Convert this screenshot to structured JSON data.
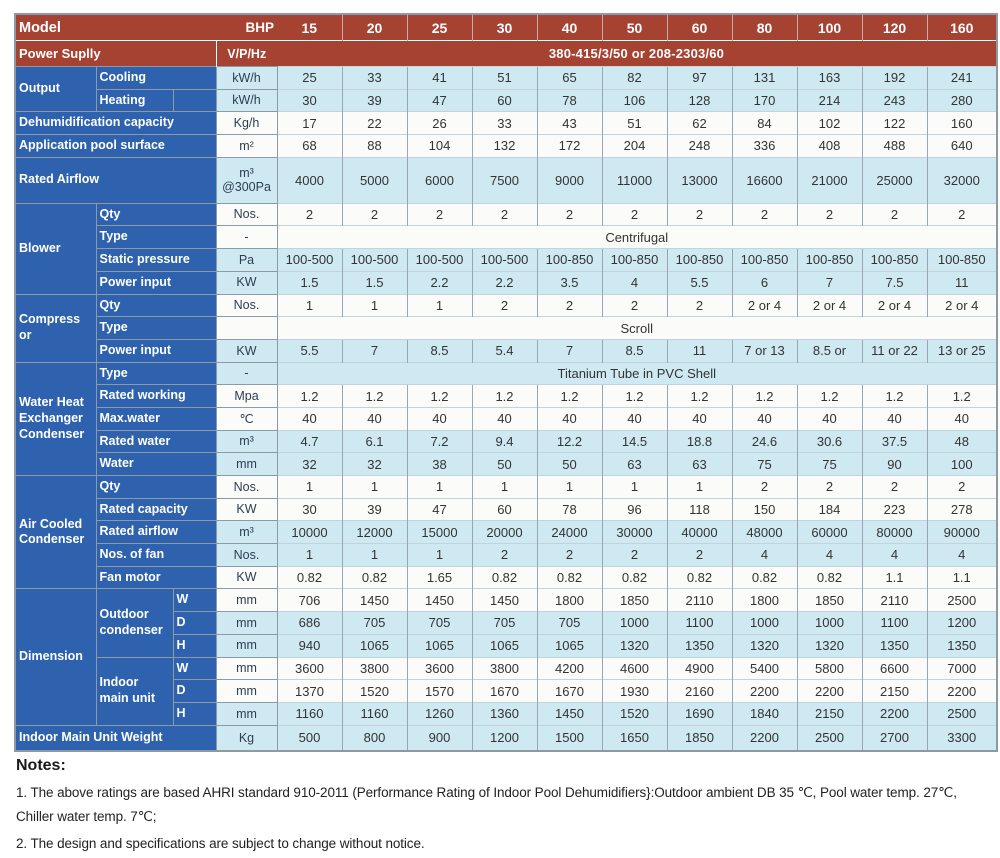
{
  "header": {
    "model_label": "Model",
    "bhp_label": "BHP",
    "models": [
      "15",
      "20",
      "25",
      "30",
      "40",
      "50",
      "60",
      "80",
      "100",
      "120",
      "160"
    ],
    "power_supply_label": "Power Suplly",
    "power_supply_unit": "V/P/Hz",
    "power_supply_value": "380-415/3/50 or 208-2303/60"
  },
  "table": {
    "rows": [
      {
        "section": "Output",
        "section_rowspan": 2,
        "label": "Cooling",
        "unit": "kW/h",
        "tint": true,
        "values": [
          25,
          33,
          41,
          51,
          65,
          82,
          97,
          131,
          163,
          192,
          241
        ]
      },
      {
        "label": "Heating",
        "narrow": true,
        "unit": "kW/h",
        "tint": true,
        "values": [
          30,
          39,
          47,
          60,
          78,
          106,
          128,
          170,
          214,
          243,
          280
        ]
      },
      {
        "wide": "Dehumidification capacity",
        "unit": "Kg/h",
        "tint": false,
        "values": [
          17,
          22,
          26,
          33,
          43,
          51,
          62,
          84,
          102,
          122,
          160
        ]
      },
      {
        "wide": "Application pool surface",
        "unit": "m²",
        "tint": false,
        "values": [
          68,
          88,
          104,
          132,
          172,
          204,
          248,
          336,
          408,
          488,
          640
        ]
      },
      {
        "wide": "Rated Airflow",
        "unit": "m³\n@300Pa",
        "tint": true,
        "tall": true,
        "values": [
          4000,
          5000,
          6000,
          7500,
          9000,
          11000,
          13000,
          16600,
          21000,
          25000,
          32000
        ]
      },
      {
        "section": "Blower",
        "section_rowspan": 4,
        "label": "Qty",
        "unit": "Nos.",
        "tint": false,
        "values": [
          2,
          2,
          2,
          2,
          2,
          2,
          2,
          2,
          2,
          2,
          2
        ]
      },
      {
        "label": "Type",
        "unit": "-",
        "tint": false,
        "span_value": "Centrifugal"
      },
      {
        "label": "Static pressure",
        "unit": "Pa",
        "tint": true,
        "values": [
          "100-500",
          "100-500",
          "100-500",
          "100-500",
          "100-850",
          "100-850",
          "100-850",
          "100-850",
          "100-850",
          "100-850",
          "100-850"
        ]
      },
      {
        "label": "Power input",
        "unit": "KW",
        "tint": true,
        "values": [
          1.5,
          1.5,
          2.2,
          2.2,
          3.5,
          4,
          5.5,
          6,
          7,
          7.5,
          11
        ]
      },
      {
        "section": "Compressor",
        "section_rowspan": 3,
        "wrap_section": true,
        "label": "Qty",
        "unit": "Nos.",
        "tint": false,
        "values": [
          1,
          1,
          1,
          2,
          2,
          2,
          2,
          "2 or 4",
          "2 or 4",
          "2 or 4",
          "2 or 4"
        ]
      },
      {
        "label": "Type",
        "unit": "",
        "tint": false,
        "span_value": "Scroll"
      },
      {
        "label": "Power input",
        "unit": "KW",
        "tint": true,
        "values": [
          5.5,
          7,
          8.5,
          5.4,
          7,
          8.5,
          11,
          "7 or 13",
          "8.5 or",
          "11 or 22",
          "13 or 25"
        ]
      },
      {
        "section": "Water Heat Exchanger Condenser",
        "section_rowspan": 5,
        "label": "Type",
        "unit": "-",
        "tint": true,
        "span_value": "Titanium Tube in PVC Shell"
      },
      {
        "label": "Rated working",
        "unit": "Mpa",
        "tint": false,
        "values": [
          1.2,
          1.2,
          1.2,
          1.2,
          1.2,
          1.2,
          1.2,
          1.2,
          1.2,
          1.2,
          1.2
        ]
      },
      {
        "label": "Max.water",
        "unit": "℃",
        "tint": false,
        "values": [
          40,
          40,
          40,
          40,
          40,
          40,
          40,
          40,
          40,
          40,
          40
        ]
      },
      {
        "label": "Rated water",
        "unit": "m³",
        "tint": true,
        "values": [
          4.7,
          6.1,
          7.2,
          9.4,
          12.2,
          14.5,
          18.8,
          24.6,
          30.6,
          37.5,
          48
        ]
      },
      {
        "label": "Water",
        "unit": "mm",
        "tint": true,
        "values": [
          32,
          32,
          38,
          50,
          50,
          63,
          63,
          75,
          75,
          90,
          100
        ]
      },
      {
        "section": "Air Cooled Condenser",
        "section_rowspan": 5,
        "label": "Qty",
        "unit": "Nos.",
        "tint": false,
        "values": [
          1,
          1,
          1,
          1,
          1,
          1,
          1,
          2,
          2,
          2,
          2
        ]
      },
      {
        "label": "Rated capacity",
        "unit": "KW",
        "tint": false,
        "values": [
          30,
          39,
          47,
          60,
          78,
          96,
          118,
          150,
          184,
          223,
          278
        ]
      },
      {
        "label": "Rated airflow",
        "unit": "m³",
        "tint": true,
        "values": [
          10000,
          12000,
          15000,
          20000,
          24000,
          30000,
          40000,
          48000,
          60000,
          80000,
          90000
        ]
      },
      {
        "label": "Nos. of fan",
        "unit": "Nos.",
        "tint": true,
        "values": [
          1,
          1,
          1,
          2,
          2,
          2,
          2,
          4,
          4,
          4,
          4
        ]
      },
      {
        "label": "Fan motor",
        "unit": "KW",
        "tint": false,
        "values": [
          0.82,
          0.82,
          1.65,
          0.82,
          0.82,
          0.82,
          0.82,
          0.82,
          0.82,
          1.1,
          1.1
        ]
      },
      {
        "section": "Dimension",
        "section_rowspan": 6,
        "group": "Outdoor condenser",
        "group_rowspan": 3,
        "dim": "W",
        "unit": "mm",
        "tint": false,
        "values": [
          706,
          1450,
          1450,
          1450,
          1800,
          1850,
          2110,
          1800,
          1850,
          2110,
          2500
        ]
      },
      {
        "dim": "D",
        "unit": "mm",
        "tint": true,
        "values": [
          686,
          705,
          705,
          705,
          705,
          1000,
          1100,
          1000,
          1000,
          1100,
          1200
        ]
      },
      {
        "dim": "H",
        "unit": "mm",
        "tint": true,
        "values": [
          940,
          1065,
          1065,
          1065,
          1065,
          1320,
          1350,
          1320,
          1320,
          1350,
          1350
        ]
      },
      {
        "group": "Indoor main unit",
        "group_rowspan": 3,
        "dim": "W",
        "unit": "mm",
        "tint": false,
        "values": [
          3600,
          3800,
          3600,
          3800,
          4200,
          4600,
          4900,
          5400,
          5800,
          6600,
          7000
        ]
      },
      {
        "dim": "D",
        "unit": "mm",
        "tint": false,
        "values": [
          1370,
          1520,
          1570,
          1670,
          1670,
          1930,
          2160,
          2200,
          2200,
          2150,
          2200
        ]
      },
      {
        "dim": "H",
        "unit": "mm",
        "tint": true,
        "values": [
          1160,
          1160,
          1260,
          1360,
          1450,
          1520,
          1690,
          1840,
          2150,
          2200,
          2500
        ]
      },
      {
        "wide": "Indoor Main Unit Weight",
        "unit": "Kg",
        "tint": true,
        "weight_row": true,
        "values": [
          500,
          800,
          900,
          1200,
          1500,
          1650,
          1850,
          2200,
          2500,
          2700,
          3300
        ]
      }
    ]
  },
  "notes": {
    "title": "Notes:",
    "items": [
      "1. The above ratings are based AHRI standard 910-2011 (Performance Rating of Indoor Pool Dehumidifiers}:Outdoor ambient DB 35 ℃, Pool water temp. 27℃, Chiller water temp. 7℃;",
      "2. The design and specifications are subject to change without notice."
    ]
  },
  "colors": {
    "header_red": "#a64232",
    "label_blue": "#2e62ae",
    "row_tint": "#cfe9f3",
    "row_plain": "#fbfbfa",
    "grid": "#8c9aa4"
  }
}
